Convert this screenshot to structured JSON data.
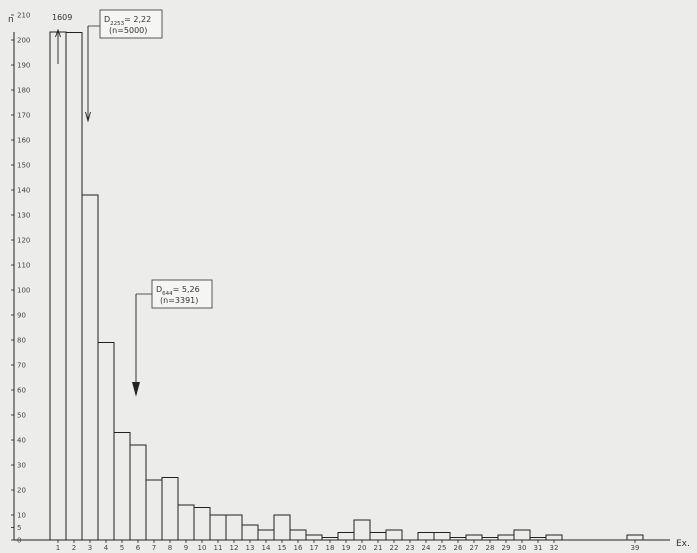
{
  "chart_data": {
    "type": "bar",
    "y_axis_label": "n",
    "x_axis_label": "Ex.",
    "y_tick_labels": [
      "0",
      "5",
      "10",
      "20",
      "30",
      "40",
      "50",
      "60",
      "70",
      "80",
      "90",
      "100",
      "110",
      "120",
      "130",
      "140",
      "150",
      "160",
      "170",
      "180",
      "190",
      "200",
      "210"
    ],
    "y_scale_note": "y axis broken; ticks every 10 up to 200",
    "top_value_label": "1609",
    "categories": [
      "1",
      "2",
      "3",
      "4",
      "5",
      "6",
      "7",
      "8",
      "9",
      "10",
      "11",
      "12",
      "13",
      "14",
      "15",
      "16",
      "17",
      "18",
      "19",
      "20",
      "21",
      "22",
      "23",
      "24",
      "25",
      "26",
      "27",
      "28",
      "29",
      "30",
      "31",
      "32",
      "39"
    ],
    "values": [
      1609,
      203,
      138,
      79,
      43,
      38,
      24,
      25,
      14,
      13,
      10,
      10,
      6,
      4,
      10,
      4,
      2,
      1,
      3,
      8,
      3,
      4,
      0,
      3,
      3,
      1,
      2,
      1,
      2,
      4,
      1,
      2,
      2
    ],
    "annotations": [
      {
        "label": "D",
        "sub": "2253",
        "value": "= 2,22",
        "n": "(n=5000)",
        "arrow_at_x": 2.8
      },
      {
        "label": "D",
        "sub": "644",
        "value": "= 5,26",
        "n": "(n=3391)",
        "arrow_at_x": 5.8
      }
    ],
    "grid": false
  }
}
